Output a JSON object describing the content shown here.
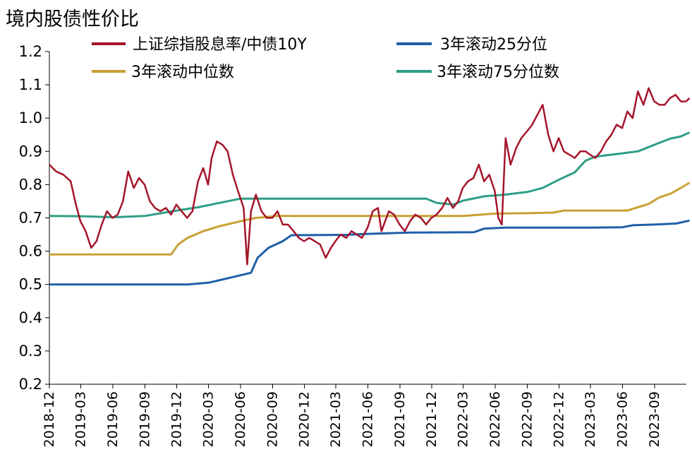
{
  "chart_data": {
    "type": "line",
    "title": "境内股债性价比",
    "xlabel": "",
    "ylabel": "",
    "ylim": [
      0.2,
      1.2
    ],
    "yticks": [
      "0.2",
      "0.3",
      "0.4",
      "0.5",
      "0.6",
      "0.7",
      "0.8",
      "0.9",
      "1.0",
      "1.1",
      "1.2"
    ],
    "x_range": [
      "2018-12",
      "2023-12"
    ],
    "xticks": [
      "2018-12",
      "2019-03",
      "2019-06",
      "2019-09",
      "2019-12",
      "2020-03",
      "2020-06",
      "2020-09",
      "2020-12",
      "2021-03",
      "2021-06",
      "2021-09",
      "2021-12",
      "2022-03",
      "2022-06",
      "2022-09",
      "2022-12",
      "2023-03",
      "2023-06",
      "2023-09"
    ],
    "grid": false,
    "legend_position": "top",
    "series": [
      {
        "name": "上证综指股息率/中债10Y",
        "color": "#a5152a",
        "points": [
          [
            "2018-12-01",
            0.86
          ],
          [
            "2018-12-20",
            0.84
          ],
          [
            "2019-01-10",
            0.83
          ],
          [
            "2019-01-31",
            0.81
          ],
          [
            "2019-02-15",
            0.74
          ],
          [
            "2019-02-28",
            0.69
          ],
          [
            "2019-03-15",
            0.66
          ],
          [
            "2019-03-31",
            0.61
          ],
          [
            "2019-04-15",
            0.63
          ],
          [
            "2019-04-30",
            0.68
          ],
          [
            "2019-05-15",
            0.72
          ],
          [
            "2019-05-31",
            0.7
          ],
          [
            "2019-06-15",
            0.71
          ],
          [
            "2019-06-30",
            0.75
          ],
          [
            "2019-07-15",
            0.84
          ],
          [
            "2019-07-31",
            0.79
          ],
          [
            "2019-08-15",
            0.82
          ],
          [
            "2019-08-31",
            0.8
          ],
          [
            "2019-09-15",
            0.75
          ],
          [
            "2019-09-30",
            0.73
          ],
          [
            "2019-10-15",
            0.72
          ],
          [
            "2019-10-31",
            0.73
          ],
          [
            "2019-11-15",
            0.71
          ],
          [
            "2019-11-30",
            0.74
          ],
          [
            "2019-12-15",
            0.72
          ],
          [
            "2019-12-31",
            0.7
          ],
          [
            "2020-01-15",
            0.72
          ],
          [
            "2020-01-31",
            0.81
          ],
          [
            "2020-02-15",
            0.85
          ],
          [
            "2020-02-29",
            0.8
          ],
          [
            "2020-03-10",
            0.88
          ],
          [
            "2020-03-25",
            0.93
          ],
          [
            "2020-04-10",
            0.92
          ],
          [
            "2020-04-25",
            0.9
          ],
          [
            "2020-05-10",
            0.83
          ],
          [
            "2020-05-25",
            0.78
          ],
          [
            "2020-06-10",
            0.73
          ],
          [
            "2020-06-20",
            0.56
          ],
          [
            "2020-07-01",
            0.72
          ],
          [
            "2020-07-15",
            0.77
          ],
          [
            "2020-07-31",
            0.72
          ],
          [
            "2020-08-15",
            0.7
          ],
          [
            "2020-08-31",
            0.7
          ],
          [
            "2020-09-15",
            0.72
          ],
          [
            "2020-09-30",
            0.68
          ],
          [
            "2020-10-15",
            0.68
          ],
          [
            "2020-10-31",
            0.66
          ],
          [
            "2020-11-15",
            0.64
          ],
          [
            "2020-11-30",
            0.63
          ],
          [
            "2020-12-15",
            0.64
          ],
          [
            "2020-12-31",
            0.63
          ],
          [
            "2021-01-15",
            0.62
          ],
          [
            "2021-01-31",
            0.58
          ],
          [
            "2021-02-15",
            0.61
          ],
          [
            "2021-02-28",
            0.63
          ],
          [
            "2021-03-15",
            0.65
          ],
          [
            "2021-03-31",
            0.64
          ],
          [
            "2021-04-15",
            0.66
          ],
          [
            "2021-04-30",
            0.65
          ],
          [
            "2021-05-15",
            0.64
          ],
          [
            "2021-05-31",
            0.67
          ],
          [
            "2021-06-15",
            0.72
          ],
          [
            "2021-06-30",
            0.73
          ],
          [
            "2021-07-10",
            0.66
          ],
          [
            "2021-07-31",
            0.72
          ],
          [
            "2021-08-15",
            0.71
          ],
          [
            "2021-08-31",
            0.68
          ],
          [
            "2021-09-15",
            0.66
          ],
          [
            "2021-09-30",
            0.69
          ],
          [
            "2021-10-15",
            0.71
          ],
          [
            "2021-10-31",
            0.7
          ],
          [
            "2021-11-15",
            0.68
          ],
          [
            "2021-11-30",
            0.7
          ],
          [
            "2021-12-15",
            0.71
          ],
          [
            "2021-12-31",
            0.73
          ],
          [
            "2022-01-15",
            0.76
          ],
          [
            "2022-01-31",
            0.73
          ],
          [
            "2022-02-15",
            0.75
          ],
          [
            "2022-02-28",
            0.79
          ],
          [
            "2022-03-15",
            0.81
          ],
          [
            "2022-03-31",
            0.82
          ],
          [
            "2022-04-15",
            0.86
          ],
          [
            "2022-04-30",
            0.81
          ],
          [
            "2022-05-15",
            0.83
          ],
          [
            "2022-05-31",
            0.78
          ],
          [
            "2022-06-10",
            0.7
          ],
          [
            "2022-06-20",
            0.68
          ],
          [
            "2022-07-01",
            0.94
          ],
          [
            "2022-07-15",
            0.86
          ],
          [
            "2022-07-31",
            0.91
          ],
          [
            "2022-08-15",
            0.94
          ],
          [
            "2022-08-31",
            0.96
          ],
          [
            "2022-09-15",
            0.98
          ],
          [
            "2022-09-30",
            1.01
          ],
          [
            "2022-10-15",
            1.04
          ],
          [
            "2022-10-31",
            0.95
          ],
          [
            "2022-11-15",
            0.9
          ],
          [
            "2022-11-30",
            0.94
          ],
          [
            "2022-12-15",
            0.9
          ],
          [
            "2022-12-31",
            0.89
          ],
          [
            "2023-01-15",
            0.88
          ],
          [
            "2023-01-31",
            0.9
          ],
          [
            "2023-02-15",
            0.9
          ],
          [
            "2023-02-28",
            0.89
          ],
          [
            "2023-03-15",
            0.88
          ],
          [
            "2023-03-31",
            0.9
          ],
          [
            "2023-04-15",
            0.93
          ],
          [
            "2023-04-30",
            0.95
          ],
          [
            "2023-05-15",
            0.98
          ],
          [
            "2023-05-31",
            0.97
          ],
          [
            "2023-06-15",
            1.02
          ],
          [
            "2023-06-30",
            1.0
          ],
          [
            "2023-07-15",
            1.08
          ],
          [
            "2023-07-31",
            1.04
          ],
          [
            "2023-08-15",
            1.09
          ],
          [
            "2023-08-31",
            1.05
          ],
          [
            "2023-09-15",
            1.04
          ],
          [
            "2023-09-30",
            1.04
          ],
          [
            "2023-10-15",
            1.06
          ],
          [
            "2023-10-31",
            1.07
          ],
          [
            "2023-11-15",
            1.05
          ],
          [
            "2023-11-30",
            1.05
          ],
          [
            "2023-12-10",
            1.06
          ]
        ]
      },
      {
        "name": "3年滚动25分位",
        "color": "#1f5fa8",
        "points": [
          [
            "2018-12-01",
            0.5
          ],
          [
            "2019-06-01",
            0.5
          ],
          [
            "2020-01-01",
            0.5
          ],
          [
            "2020-03-01",
            0.505
          ],
          [
            "2020-05-01",
            0.52
          ],
          [
            "2020-07-01",
            0.535
          ],
          [
            "2020-07-20",
            0.58
          ],
          [
            "2020-08-20",
            0.61
          ],
          [
            "2020-09-30",
            0.63
          ],
          [
            "2020-10-25",
            0.648
          ],
          [
            "2021-04-01",
            0.649
          ],
          [
            "2021-06-01",
            0.652
          ],
          [
            "2021-10-01",
            0.656
          ],
          [
            "2022-04-01",
            0.657
          ],
          [
            "2022-05-01",
            0.668
          ],
          [
            "2022-07-01",
            0.671
          ],
          [
            "2023-03-01",
            0.671
          ],
          [
            "2023-06-01",
            0.672
          ],
          [
            "2023-07-01",
            0.678
          ],
          [
            "2023-09-01",
            0.68
          ],
          [
            "2023-11-01",
            0.683
          ],
          [
            "2023-12-10",
            0.692
          ]
        ]
      },
      {
        "name": "3年滚动中位数",
        "color": "#c8a032",
        "points": [
          [
            "2018-12-01",
            0.59
          ],
          [
            "2019-06-01",
            0.59
          ],
          [
            "2019-11-15",
            0.59
          ],
          [
            "2019-12-05",
            0.62
          ],
          [
            "2020-01-01",
            0.64
          ],
          [
            "2020-02-15",
            0.66
          ],
          [
            "2020-04-01",
            0.675
          ],
          [
            "2020-06-01",
            0.69
          ],
          [
            "2020-07-15",
            0.7
          ],
          [
            "2020-09-15",
            0.706
          ],
          [
            "2021-06-01",
            0.706
          ],
          [
            "2021-10-01",
            0.706
          ],
          [
            "2022-03-01",
            0.706
          ],
          [
            "2022-06-01",
            0.713
          ],
          [
            "2022-09-01",
            0.714
          ],
          [
            "2022-11-15",
            0.716
          ],
          [
            "2022-12-15",
            0.722
          ],
          [
            "2023-06-15",
            0.722
          ],
          [
            "2023-07-15",
            0.732
          ],
          [
            "2023-08-15",
            0.742
          ],
          [
            "2023-09-15",
            0.762
          ],
          [
            "2023-10-15",
            0.772
          ],
          [
            "2023-11-15",
            0.79
          ],
          [
            "2023-12-10",
            0.806
          ]
        ]
      },
      {
        "name": "3年滚动75分位数",
        "color": "#2e9e86",
        "points": [
          [
            "2018-12-01",
            0.706
          ],
          [
            "2019-03-01",
            0.705
          ],
          [
            "2019-06-01",
            0.702
          ],
          [
            "2019-09-01",
            0.706
          ],
          [
            "2019-12-01",
            0.722
          ],
          [
            "2020-02-01",
            0.732
          ],
          [
            "2020-04-01",
            0.745
          ],
          [
            "2020-06-01",
            0.758
          ],
          [
            "2020-09-01",
            0.758
          ],
          [
            "2021-06-01",
            0.758
          ],
          [
            "2021-11-15",
            0.758
          ],
          [
            "2021-12-15",
            0.745
          ],
          [
            "2022-02-01",
            0.74
          ],
          [
            "2022-03-01",
            0.752
          ],
          [
            "2022-05-01",
            0.765
          ],
          [
            "2022-07-01",
            0.77
          ],
          [
            "2022-09-01",
            0.778
          ],
          [
            "2022-10-15",
            0.79
          ],
          [
            "2022-12-01",
            0.815
          ],
          [
            "2023-01-15",
            0.837
          ],
          [
            "2023-02-15",
            0.872
          ],
          [
            "2023-03-15",
            0.884
          ],
          [
            "2023-05-15",
            0.892
          ],
          [
            "2023-07-15",
            0.9
          ],
          [
            "2023-09-01",
            0.92
          ],
          [
            "2023-10-15",
            0.938
          ],
          [
            "2023-11-15",
            0.945
          ],
          [
            "2023-12-10",
            0.957
          ]
        ]
      }
    ]
  }
}
